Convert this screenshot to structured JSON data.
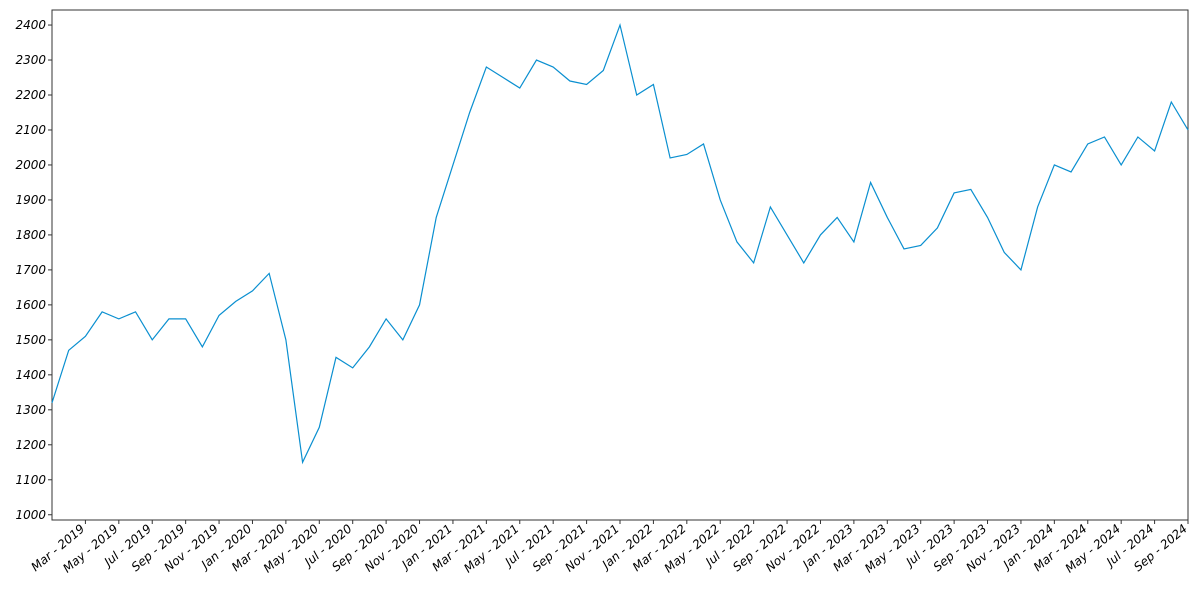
{
  "chart_data": {
    "type": "line",
    "x": [
      "2019-01",
      "2019-02",
      "2019-03",
      "2019-04",
      "2019-05",
      "2019-06",
      "2019-07",
      "2019-08",
      "2019-09",
      "2019-10",
      "2019-11",
      "2019-12",
      "2020-01",
      "2020-02",
      "2020-03",
      "2020-04",
      "2020-05",
      "2020-06",
      "2020-07",
      "2020-08",
      "2020-09",
      "2020-10",
      "2020-11",
      "2020-12",
      "2021-01",
      "2021-02",
      "2021-03",
      "2021-04",
      "2021-05",
      "2021-06",
      "2021-07",
      "2021-08",
      "2021-09",
      "2021-10",
      "2021-11",
      "2021-12",
      "2022-01",
      "2022-02",
      "2022-03",
      "2022-04",
      "2022-05",
      "2022-06",
      "2022-07",
      "2022-08",
      "2022-09",
      "2022-10",
      "2022-11",
      "2022-12",
      "2023-01",
      "2023-02",
      "2023-03",
      "2023-04",
      "2023-05",
      "2023-06",
      "2023-07",
      "2023-08",
      "2023-09",
      "2023-10",
      "2023-11",
      "2023-12",
      "2024-01",
      "2024-02",
      "2024-03",
      "2024-04",
      "2024-05",
      "2024-06",
      "2024-07",
      "2024-08",
      "2024-09"
    ],
    "series": [
      {
        "name": "value",
        "color": "#0a8fd0",
        "values": [
          1320,
          1470,
          1510,
          1580,
          1560,
          1580,
          1500,
          1560,
          1560,
          1480,
          1570,
          1610,
          1640,
          1690,
          1500,
          1150,
          1250,
          1450,
          1420,
          1480,
          1560,
          1500,
          1600,
          1850,
          2000,
          2150,
          2280,
          2250,
          2220,
          2300,
          2280,
          2240,
          2230,
          2270,
          2400,
          2200,
          2230,
          2020,
          2030,
          2060,
          1900,
          1780,
          1720,
          1880,
          1800,
          1720,
          1800,
          1850,
          1780,
          1950,
          1850,
          1760,
          1770,
          1820,
          1920,
          1930,
          1850,
          1750,
          1700,
          1880,
          2000,
          1980,
          2060,
          2080,
          2000,
          2080,
          2040,
          2180,
          2100
        ]
      }
    ],
    "ylim": [
      985,
      2443
    ],
    "yticks": [
      1000,
      1100,
      1200,
      1300,
      1400,
      1500,
      1600,
      1700,
      1800,
      1900,
      2000,
      2100,
      2200,
      2300,
      2400
    ],
    "xticks": [
      {
        "value": "2019-03",
        "label": "Mar - 2019"
      },
      {
        "value": "2019-05",
        "label": "May - 2019"
      },
      {
        "value": "2019-07",
        "label": "Jul - 2019"
      },
      {
        "value": "2019-09",
        "label": "Sep - 2019"
      },
      {
        "value": "2019-11",
        "label": "Nov - 2019"
      },
      {
        "value": "2020-01",
        "label": "Jan - 2020"
      },
      {
        "value": "2020-03",
        "label": "Mar - 2020"
      },
      {
        "value": "2020-05",
        "label": "May - 2020"
      },
      {
        "value": "2020-07",
        "label": "Jul - 2020"
      },
      {
        "value": "2020-09",
        "label": "Sep - 2020"
      },
      {
        "value": "2020-11",
        "label": "Nov - 2020"
      },
      {
        "value": "2021-01",
        "label": "Jan - 2021"
      },
      {
        "value": "2021-03",
        "label": "Mar - 2021"
      },
      {
        "value": "2021-05",
        "label": "May - 2021"
      },
      {
        "value": "2021-07",
        "label": "Jul - 2021"
      },
      {
        "value": "2021-09",
        "label": "Sep - 2021"
      },
      {
        "value": "2021-11",
        "label": "Nov - 2021"
      },
      {
        "value": "2022-01",
        "label": "Jan - 2022"
      },
      {
        "value": "2022-03",
        "label": "Mar - 2022"
      },
      {
        "value": "2022-05",
        "label": "May - 2022"
      },
      {
        "value": "2022-07",
        "label": "Jul - 2022"
      },
      {
        "value": "2022-09",
        "label": "Sep - 2022"
      },
      {
        "value": "2022-11",
        "label": "Nov - 2022"
      },
      {
        "value": "2023-01",
        "label": "Jan - 2023"
      },
      {
        "value": "2023-03",
        "label": "Mar - 2023"
      },
      {
        "value": "2023-05",
        "label": "May - 2023"
      },
      {
        "value": "2023-07",
        "label": "Jul - 2023"
      },
      {
        "value": "2023-09",
        "label": "Sep - 2023"
      },
      {
        "value": "2023-11",
        "label": "Nov - 2023"
      },
      {
        "value": "2024-01",
        "label": "Jan - 2024"
      },
      {
        "value": "2024-03",
        "label": "Mar - 2024"
      },
      {
        "value": "2024-05",
        "label": "May - 2024"
      },
      {
        "value": "2024-07",
        "label": "Jul - 2024"
      },
      {
        "value": "2024-09",
        "label": "Sep - 2024"
      }
    ],
    "grid": false
  }
}
